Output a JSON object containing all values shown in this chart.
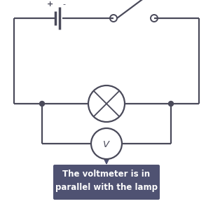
{
  "bg_color": "#ffffff",
  "wire_color": "#4a4a5a",
  "component_color": "#4a4a5a",
  "dot_color": "#4a4a5a",
  "label_bg_color": "#4f5272",
  "label_text_color": "#ffffff",
  "label_text": "The voltmeter is in\nparallel with the lamp",
  "label_fontsize": 8.5,
  "plus_label": "+",
  "minus_label": "-",
  "wire_lw": 1.6,
  "component_lw": 1.6,
  "figsize": [
    3.04,
    2.94
  ],
  "dpi": 100
}
